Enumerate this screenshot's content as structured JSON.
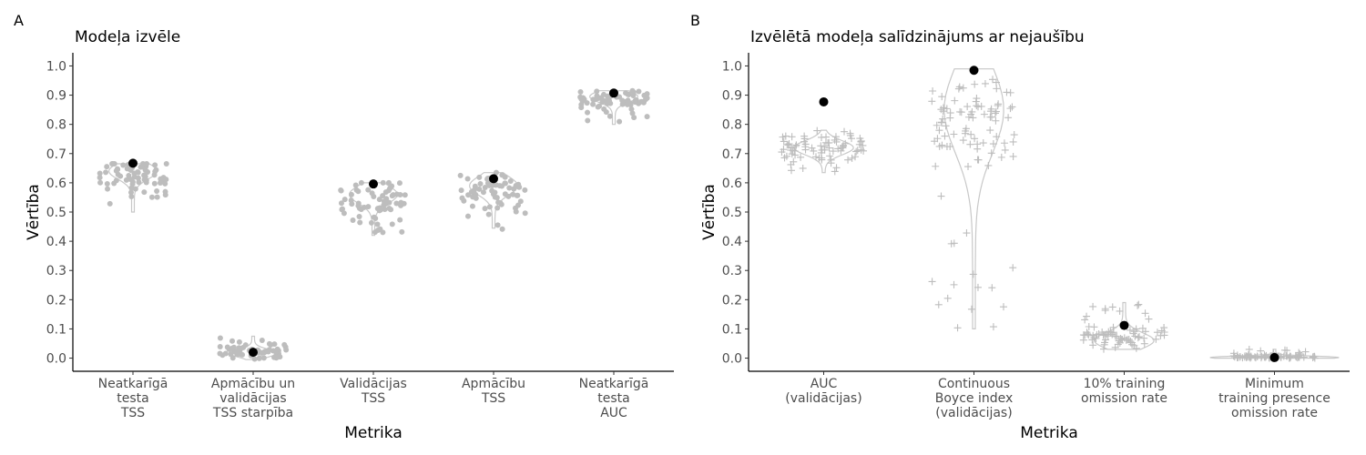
{
  "colors": {
    "jitter": "#bdbdbd",
    "violin": "#c8c8c8",
    "highlight": "#000000",
    "axis": "#000000"
  },
  "chart_data": [
    {
      "type": "scatter",
      "panel_tag": "A",
      "title": "Modeļa izvēle",
      "xlabel": "Metrika",
      "ylabel": "Vērtība",
      "ylim": [
        -0.045,
        1.045
      ],
      "y_ticks": [
        "0.0",
        "0.1",
        "0.2",
        "0.3",
        "0.4",
        "0.5",
        "0.6",
        "0.7",
        "0.8",
        "0.9",
        "1.0"
      ],
      "marker": "circle",
      "categories": [
        {
          "label_lines": [
            "Neatkarīgā",
            "testa",
            "TSS"
          ],
          "violin_min": 0.5,
          "violin_max": 0.665,
          "violin_bulge": 0.64,
          "jitter_center": 0.625,
          "jitter_spread": 0.04,
          "jitter_low": 0.5,
          "n": 70,
          "selected": 0.667
        },
        {
          "label_lines": [
            "Apmācību un",
            "validācijas",
            "TSS starpība"
          ],
          "violin_min": -0.005,
          "violin_max": 0.075,
          "violin_bulge": 0.017,
          "jitter_center": 0.025,
          "jitter_spread": 0.02,
          "jitter_low": -0.01,
          "n": 60,
          "selected": 0.02
        },
        {
          "label_lines": [
            "Validācijas",
            "TSS"
          ],
          "violin_min": 0.42,
          "violin_max": 0.6,
          "violin_bulge": 0.56,
          "jitter_center": 0.545,
          "jitter_spread": 0.05,
          "jitter_low": 0.41,
          "n": 70,
          "selected": 0.596
        },
        {
          "label_lines": [
            "Apmācību",
            "TSS"
          ],
          "violin_min": 0.445,
          "violin_max": 0.635,
          "violin_bulge": 0.59,
          "jitter_center": 0.57,
          "jitter_spread": 0.05,
          "jitter_low": 0.44,
          "n": 70,
          "selected": 0.614
        },
        {
          "label_lines": [
            "Neatkarīgā",
            "testa",
            "AUC"
          ],
          "violin_min": 0.8,
          "violin_max": 0.915,
          "violin_bulge": 0.895,
          "jitter_center": 0.885,
          "jitter_spread": 0.03,
          "jitter_low": 0.805,
          "n": 70,
          "selected": 0.907
        }
      ]
    },
    {
      "type": "scatter",
      "panel_tag": "B",
      "title": "Izvēlētā modeļa salīdzinājums ar nejaušību",
      "xlabel": "Metrika",
      "ylabel": "Vērtība",
      "ylim": [
        -0.045,
        1.045
      ],
      "y_ticks": [
        "0.0",
        "0.1",
        "0.2",
        "0.3",
        "0.4",
        "0.5",
        "0.6",
        "0.7",
        "0.8",
        "0.9",
        "1.0"
      ],
      "marker": "plus",
      "categories": [
        {
          "label_lines": [
            "AUC",
            "(validācijas)"
          ],
          "violin_min": 0.635,
          "violin_max": 0.78,
          "violin_bulge": 0.72,
          "jitter_center": 0.72,
          "jitter_spread": 0.035,
          "jitter_low": 0.635,
          "n": 80,
          "selected": 0.877
        },
        {
          "label_lines": [
            "Continuous",
            "Boyce index",
            "(validācijas)"
          ],
          "violin_min": 0.1,
          "violin_max": 0.99,
          "violin_bulge": 0.85,
          "jitter_center": 0.8,
          "jitter_spread": 0.12,
          "jitter_low": 0.1,
          "n": 100,
          "selected": 0.985
        },
        {
          "label_lines": [
            "10% training",
            "omission rate"
          ],
          "violin_min": 0.03,
          "violin_max": 0.19,
          "violin_bulge": 0.06,
          "jitter_center": 0.065,
          "jitter_spread": 0.025,
          "jitter_low": 0.025,
          "n": 80,
          "selected": 0.112
        },
        {
          "label_lines": [
            "Minimum",
            "training presence",
            "omission rate"
          ],
          "violin_min": 0.0,
          "violin_max": 0.03,
          "violin_bulge": 0.002,
          "jitter_center": 0.004,
          "jitter_spread": 0.004,
          "jitter_low": 0.0,
          "n": 80,
          "selected": 0.002
        }
      ]
    }
  ]
}
